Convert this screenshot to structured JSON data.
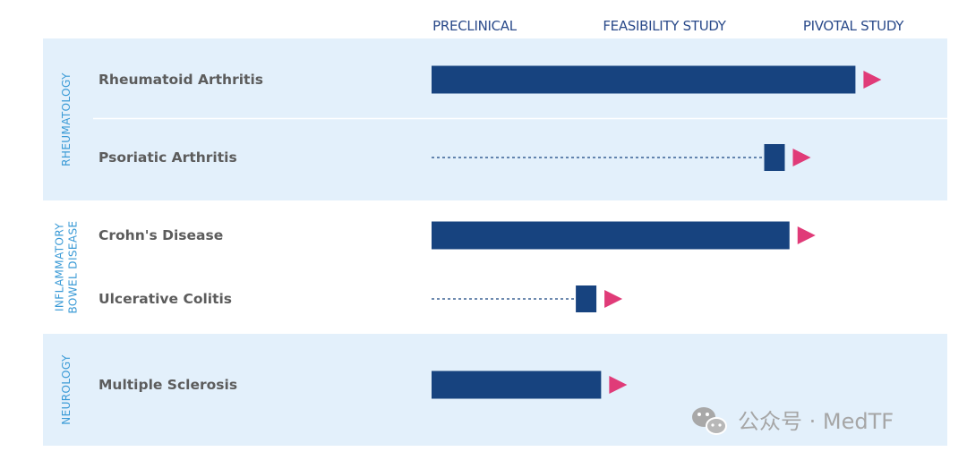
{
  "chart_data": {
    "type": "bar",
    "phases": [
      "PRECLINICAL",
      "FEASIBILITY STUDY",
      "PIVOTAL STUDY"
    ],
    "groups": [
      {
        "area": "RHEUMATOLOGY",
        "shaded": true,
        "rows": [
          {
            "label": "Rheumatoid Arthritis",
            "progress": 0.9,
            "style": "solid"
          },
          {
            "label": "Psoriatic Arthritis",
            "progress": 0.75,
            "style": "dashed"
          }
        ]
      },
      {
        "area": [
          "INFLAMMATORY",
          "BOWEL DISEASE"
        ],
        "shaded": false,
        "rows": [
          {
            "label": "Crohn's Disease",
            "progress": 0.76,
            "style": "solid"
          },
          {
            "label": "Ulcerative Colitis",
            "progress": 0.35,
            "style": "dashed"
          }
        ]
      },
      {
        "area": "NEUROLOGY",
        "shaded": true,
        "rows": [
          {
            "label": "Multiple Sclerosis",
            "progress": 0.36,
            "style": "solid"
          }
        ]
      }
    ]
  },
  "colors": {
    "band": "#e3f0fb",
    "bar": "#17437f",
    "arrow": "#e03b78",
    "phase_text": "#2a4a8a",
    "area_text": "#3a9ad6",
    "disease_text": "#5c5c5c"
  },
  "watermark": {
    "text": "公众号 · MedTF",
    "icon": "wechat-icon"
  }
}
